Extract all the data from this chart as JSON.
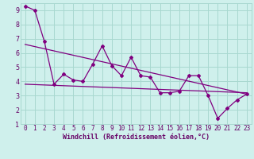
{
  "title": "",
  "xlabel": "Windchill (Refroidissement éolien,°C)",
  "ylabel": "",
  "background_color": "#cff0ec",
  "grid_color": "#a8d8d0",
  "line_color": "#800080",
  "xlim": [
    -0.5,
    23.5
  ],
  "ylim": [
    1,
    9.5
  ],
  "xticks": [
    0,
    1,
    2,
    3,
    4,
    5,
    6,
    7,
    8,
    9,
    10,
    11,
    12,
    13,
    14,
    15,
    16,
    17,
    18,
    19,
    20,
    21,
    22,
    23
  ],
  "yticks": [
    1,
    2,
    3,
    4,
    5,
    6,
    7,
    8,
    9
  ],
  "data_x": [
    0,
    1,
    2,
    3,
    4,
    5,
    6,
    7,
    8,
    9,
    10,
    11,
    12,
    13,
    14,
    15,
    16,
    17,
    18,
    19,
    20,
    21,
    22,
    23
  ],
  "data_y": [
    9.3,
    9.0,
    6.8,
    3.8,
    4.5,
    4.1,
    4.0,
    5.2,
    6.5,
    5.1,
    4.4,
    5.7,
    4.4,
    4.3,
    3.2,
    3.2,
    3.3,
    4.4,
    4.4,
    3.0,
    1.4,
    2.1,
    2.7,
    3.1
  ],
  "trend1_x": [
    0,
    23
  ],
  "trend1_y": [
    6.6,
    3.1
  ],
  "trend2_x": [
    0,
    23
  ],
  "trend2_y": [
    3.8,
    3.2
  ],
  "font_color": "#660066",
  "tick_fontsize": 5.5,
  "xlabel_fontsize": 6.0
}
